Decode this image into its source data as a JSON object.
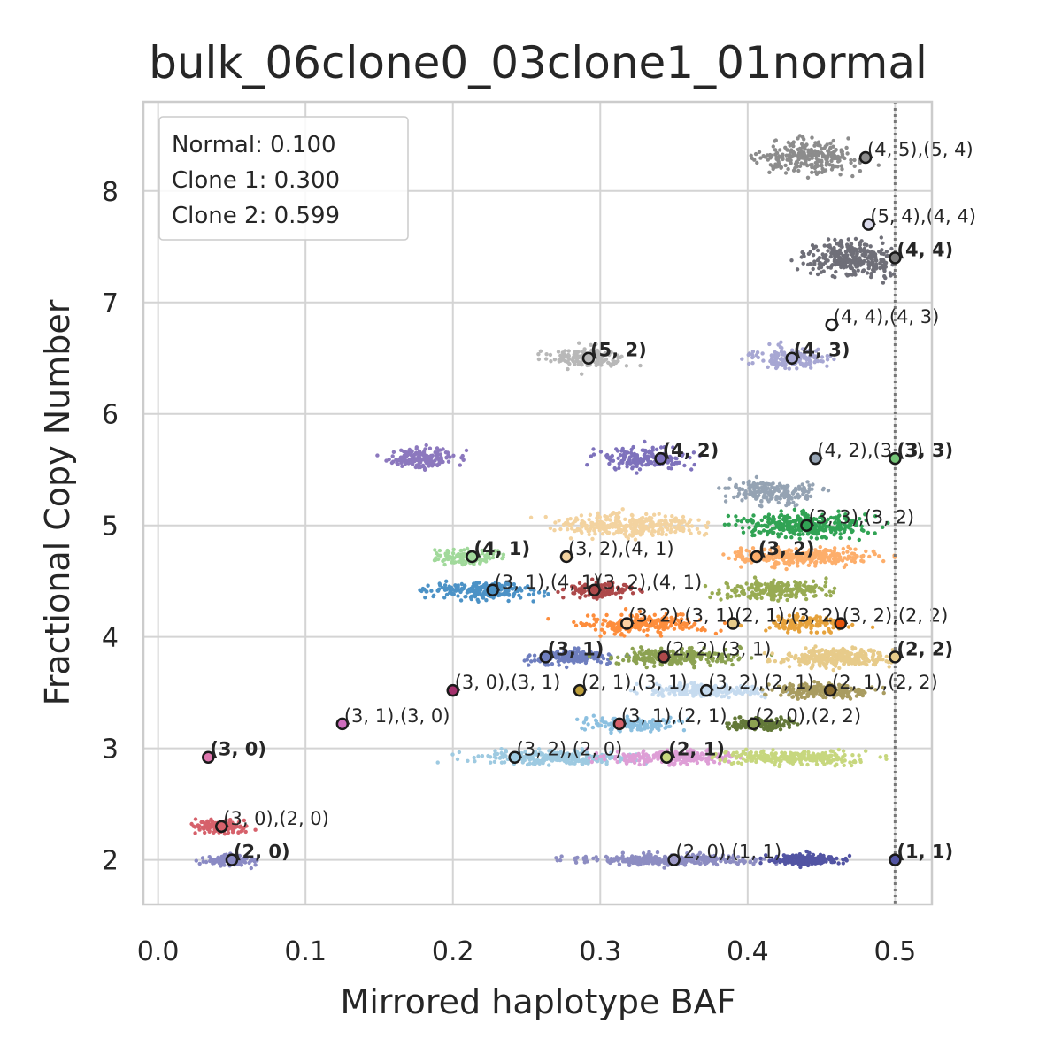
{
  "chart_data": {
    "type": "scatter",
    "title": "bulk_06clone0_03clone1_01normal",
    "xlabel": "Mirrored haplotype BAF",
    "ylabel": "Fractional Copy Number",
    "xlim": [
      -0.01,
      0.525
    ],
    "ylim": [
      1.6,
      8.8
    ],
    "xticks": [
      0.0,
      0.1,
      0.2,
      0.3,
      0.4,
      0.5
    ],
    "xtick_labels": [
      "0.0",
      "0.1",
      "0.2",
      "0.3",
      "0.4",
      "0.5"
    ],
    "yticks": [
      2,
      3,
      4,
      5,
      6,
      7,
      8
    ],
    "ytick_labels": [
      "2",
      "3",
      "4",
      "5",
      "6",
      "7",
      "8"
    ],
    "grid": true,
    "reference_line": {
      "x": 0.5,
      "style": "dotted"
    },
    "legend_box": {
      "placement": "top-left",
      "lines": [
        "Normal: 0.100",
        "Clone 1: 0.300",
        "Clone 2: 0.599"
      ]
    },
    "clusters": [
      {
        "x": 0.44,
        "y": 8.3,
        "sx": 0.03,
        "sy": 0.12,
        "n": 260,
        "color": "#8c8c8c"
      },
      {
        "x": 0.47,
        "y": 7.4,
        "sx": 0.025,
        "sy": 0.12,
        "n": 320,
        "color": "#6f6f78"
      },
      {
        "x": 0.29,
        "y": 6.5,
        "sx": 0.02,
        "sy": 0.08,
        "n": 160,
        "color": "#b8b8b8"
      },
      {
        "x": 0.43,
        "y": 6.5,
        "sx": 0.022,
        "sy": 0.08,
        "n": 160,
        "color": "#a7a7d3"
      },
      {
        "x": 0.18,
        "y": 5.6,
        "sx": 0.02,
        "sy": 0.08,
        "n": 170,
        "color": "#8c78be"
      },
      {
        "x": 0.33,
        "y": 5.6,
        "sx": 0.025,
        "sy": 0.08,
        "n": 170,
        "color": "#7e72bc"
      },
      {
        "x": 0.42,
        "y": 5.3,
        "sx": 0.028,
        "sy": 0.08,
        "n": 200,
        "color": "#95a3b3"
      },
      {
        "x": 0.32,
        "y": 5.0,
        "sx": 0.04,
        "sy": 0.09,
        "n": 300,
        "color": "#f3d3a0"
      },
      {
        "x": 0.44,
        "y": 5.0,
        "sx": 0.035,
        "sy": 0.09,
        "n": 320,
        "color": "#31a354"
      },
      {
        "x": 0.21,
        "y": 4.72,
        "sx": 0.02,
        "sy": 0.06,
        "n": 130,
        "color": "#a1d99b"
      },
      {
        "x": 0.44,
        "y": 4.72,
        "sx": 0.04,
        "sy": 0.07,
        "n": 300,
        "color": "#fdae6b"
      },
      {
        "x": 0.22,
        "y": 4.42,
        "sx": 0.03,
        "sy": 0.07,
        "n": 220,
        "color": "#4c92c6"
      },
      {
        "x": 0.3,
        "y": 4.42,
        "sx": 0.02,
        "sy": 0.06,
        "n": 120,
        "color": "#ad494a"
      },
      {
        "x": 0.42,
        "y": 4.42,
        "sx": 0.03,
        "sy": 0.07,
        "n": 220,
        "color": "#98ab53"
      },
      {
        "x": 0.33,
        "y": 4.12,
        "sx": 0.035,
        "sy": 0.07,
        "n": 240,
        "color": "#fd8d3c"
      },
      {
        "x": 0.44,
        "y": 4.12,
        "sx": 0.025,
        "sy": 0.06,
        "n": 120,
        "color": "#e6a23c"
      },
      {
        "x": 0.28,
        "y": 3.82,
        "sx": 0.025,
        "sy": 0.06,
        "n": 180,
        "color": "#6f7fbf"
      },
      {
        "x": 0.35,
        "y": 3.82,
        "sx": 0.035,
        "sy": 0.06,
        "n": 240,
        "color": "#8ca252"
      },
      {
        "x": 0.46,
        "y": 3.82,
        "sx": 0.03,
        "sy": 0.07,
        "n": 300,
        "color": "#e7cb8a"
      },
      {
        "x": 0.37,
        "y": 3.52,
        "sx": 0.035,
        "sy": 0.05,
        "n": 200,
        "color": "#c6dbef"
      },
      {
        "x": 0.45,
        "y": 3.52,
        "sx": 0.03,
        "sy": 0.05,
        "n": 200,
        "color": "#a99c60"
      },
      {
        "x": 0.32,
        "y": 3.22,
        "sx": 0.025,
        "sy": 0.05,
        "n": 150,
        "color": "#8cc0e0"
      },
      {
        "x": 0.41,
        "y": 3.22,
        "sx": 0.02,
        "sy": 0.05,
        "n": 130,
        "color": "#637939"
      },
      {
        "x": 0.27,
        "y": 2.92,
        "sx": 0.05,
        "sy": 0.05,
        "n": 260,
        "color": "#9ecae1"
      },
      {
        "x": 0.35,
        "y": 2.92,
        "sx": 0.04,
        "sy": 0.05,
        "n": 220,
        "color": "#de9ed6"
      },
      {
        "x": 0.43,
        "y": 2.92,
        "sx": 0.04,
        "sy": 0.05,
        "n": 260,
        "color": "#c7d77e"
      },
      {
        "x": 0.043,
        "y": 2.3,
        "sx": 0.015,
        "sy": 0.05,
        "n": 140,
        "color": "#d6616b"
      },
      {
        "x": 0.05,
        "y": 2.0,
        "sx": 0.015,
        "sy": 0.04,
        "n": 120,
        "color": "#8a8ac4"
      },
      {
        "x": 0.35,
        "y": 2.0,
        "sx": 0.05,
        "sy": 0.04,
        "n": 340,
        "color": "#8d8dc2"
      },
      {
        "x": 0.44,
        "y": 2.0,
        "sx": 0.02,
        "sy": 0.04,
        "n": 200,
        "color": "#5254a3"
      }
    ],
    "markers": [
      {
        "x": 0.48,
        "y": 8.3,
        "label": "(4, 5),(5, 4)",
        "bold": false,
        "color": "#8c8c8c"
      },
      {
        "x": 0.482,
        "y": 7.7,
        "label": "(5, 4),(4, 4)",
        "bold": false,
        "color": "#dadaeb"
      },
      {
        "x": 0.5,
        "y": 7.4,
        "label": "(4, 4)",
        "bold": true,
        "color": "#7b7b7b"
      },
      {
        "x": 0.457,
        "y": 6.8,
        "label": "(4, 4),(4, 3)",
        "bold": false,
        "color": "#ffffff"
      },
      {
        "x": 0.292,
        "y": 6.5,
        "label": "(5, 2)",
        "bold": true,
        "color": "#b8b8b8"
      },
      {
        "x": 0.43,
        "y": 6.5,
        "label": "(4, 3)",
        "bold": true,
        "color": "#a7a7d3"
      },
      {
        "x": 0.341,
        "y": 5.6,
        "label": "(4, 2)",
        "bold": true,
        "color": "#7e72bc"
      },
      {
        "x": 0.446,
        "y": 5.6,
        "label": "(4, 2),(3, 3)",
        "bold": false,
        "color": "#95a3b3"
      },
      {
        "x": 0.5,
        "y": 5.6,
        "label": "(3, 3)",
        "bold": true,
        "color": "#74c476"
      },
      {
        "x": 0.44,
        "y": 5.0,
        "label": "(3, 3),(3, 2)",
        "bold": false,
        "color": "#31a354"
      },
      {
        "x": 0.213,
        "y": 4.72,
        "label": "(4, 1)",
        "bold": true,
        "color": "#a1d99b"
      },
      {
        "x": 0.277,
        "y": 4.72,
        "label": "(3, 2),(4, 1)",
        "bold": false,
        "color": "#f3d3a0"
      },
      {
        "x": 0.406,
        "y": 4.72,
        "label": "(3, 2)",
        "bold": true,
        "color": "#fdae6b"
      },
      {
        "x": 0.227,
        "y": 4.42,
        "label": "(3, 1),(4, 1)",
        "bold": false,
        "color": "#4c92c6"
      },
      {
        "x": 0.296,
        "y": 4.42,
        "label": "(3, 2),(4, 1)",
        "bold": false,
        "color": "#ad494a"
      },
      {
        "x": 0.318,
        "y": 4.12,
        "label": "(3, 2),(3, 1)",
        "bold": false,
        "color": "#fdd0a2"
      },
      {
        "x": 0.39,
        "y": 4.12,
        "label": "(2, 1),(3, 2)",
        "bold": false,
        "color": "#e7cb8a"
      },
      {
        "x": 0.463,
        "y": 4.12,
        "label": "(3, 2),(2, 2)",
        "bold": false,
        "color": "#e6550d"
      },
      {
        "x": 0.263,
        "y": 3.82,
        "label": "(3, 1)",
        "bold": true,
        "color": "#6f7fbf"
      },
      {
        "x": 0.343,
        "y": 3.82,
        "label": "(2, 2),(3, 1)",
        "bold": false,
        "color": "#ad494a"
      },
      {
        "x": 0.5,
        "y": 3.82,
        "label": "(2, 2)",
        "bold": true,
        "color": "#e7cb8a"
      },
      {
        "x": 0.2,
        "y": 3.52,
        "label": "(3, 0),(3, 1)",
        "bold": false,
        "color": "#a4306c"
      },
      {
        "x": 0.286,
        "y": 3.52,
        "label": "(2, 1),(3, 1)",
        "bold": false,
        "color": "#bd9e39"
      },
      {
        "x": 0.372,
        "y": 3.52,
        "label": "(3, 2),(2, 1)",
        "bold": false,
        "color": "#c6dbef"
      },
      {
        "x": 0.456,
        "y": 3.52,
        "label": "(2, 1),(2, 2)",
        "bold": false,
        "color": "#8c6d31"
      },
      {
        "x": 0.125,
        "y": 3.22,
        "label": "(3, 1),(3, 0)",
        "bold": false,
        "color": "#ce6dbd"
      },
      {
        "x": 0.313,
        "y": 3.22,
        "label": "(3, 1),(2, 1)",
        "bold": false,
        "color": "#d6616b"
      },
      {
        "x": 0.404,
        "y": 3.22,
        "label": "(2, 0),(2, 2)",
        "bold": false,
        "color": "#8ca252"
      },
      {
        "x": 0.034,
        "y": 2.92,
        "label": "(3, 0)",
        "bold": true,
        "color": "#de77ae"
      },
      {
        "x": 0.242,
        "y": 2.92,
        "label": "(3, 2),(2, 0)",
        "bold": false,
        "color": "#9ecae1"
      },
      {
        "x": 0.345,
        "y": 2.92,
        "label": "(2, 1)",
        "bold": true,
        "color": "#c7d77e"
      },
      {
        "x": 0.043,
        "y": 2.3,
        "label": "(3, 0),(2, 0)",
        "bold": false,
        "color": "#d6616b"
      },
      {
        "x": 0.05,
        "y": 2.0,
        "label": "(2, 0)",
        "bold": true,
        "color": "#8a8ac4"
      },
      {
        "x": 0.35,
        "y": 2.0,
        "label": "(2, 0),(1, 1)",
        "bold": false,
        "color": "#9e9ac8"
      },
      {
        "x": 0.5,
        "y": 2.0,
        "label": "(1, 1)",
        "bold": true,
        "color": "#5254a3"
      }
    ]
  }
}
